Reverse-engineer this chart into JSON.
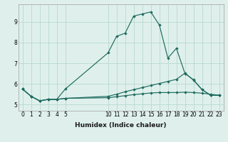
{
  "xlabel": "Humidex (Indice chaleur)",
  "bg_color": "#dff0ec",
  "grid_color": "#b8d8d0",
  "line_color": "#1e6b5e",
  "xlim": [
    -0.5,
    23.5
  ],
  "ylim": [
    4.7,
    9.85
  ],
  "xticks": [
    0,
    1,
    2,
    3,
    4,
    5,
    10,
    11,
    12,
    13,
    14,
    15,
    16,
    17,
    18,
    19,
    20,
    21,
    22,
    23
  ],
  "yticks": [
    5,
    6,
    7,
    8,
    9
  ],
  "line1_x": [
    0,
    1,
    2,
    3,
    4,
    5,
    10,
    11,
    12,
    13,
    14,
    15,
    16,
    17,
    18,
    19,
    20,
    21,
    22,
    23
  ],
  "line1_y": [
    5.75,
    5.4,
    5.18,
    5.25,
    5.25,
    5.75,
    7.5,
    8.3,
    8.45,
    9.28,
    9.38,
    9.48,
    8.85,
    7.25,
    7.72,
    6.5,
    6.2,
    5.72,
    5.45,
    5.45
  ],
  "line2_x": [
    0,
    1,
    2,
    3,
    4,
    5,
    10,
    11,
    12,
    13,
    14,
    15,
    16,
    17,
    18,
    19,
    20,
    21,
    22,
    23
  ],
  "line2_y": [
    5.75,
    5.4,
    5.18,
    5.25,
    5.25,
    5.3,
    5.4,
    5.5,
    5.62,
    5.72,
    5.82,
    5.92,
    6.02,
    6.12,
    6.22,
    6.52,
    6.18,
    5.72,
    5.45,
    5.45
  ],
  "line3_x": [
    0,
    1,
    2,
    3,
    4,
    5,
    10,
    11,
    12,
    13,
    14,
    15,
    16,
    17,
    18,
    19,
    20,
    21,
    22,
    23
  ],
  "line3_y": [
    5.75,
    5.4,
    5.18,
    5.25,
    5.25,
    5.3,
    5.33,
    5.38,
    5.43,
    5.48,
    5.52,
    5.56,
    5.58,
    5.58,
    5.58,
    5.6,
    5.58,
    5.55,
    5.5,
    5.45
  ],
  "marker_size": 2.2,
  "line_width": 0.85,
  "tick_fontsize": 5.5,
  "xlabel_fontsize": 6.5
}
